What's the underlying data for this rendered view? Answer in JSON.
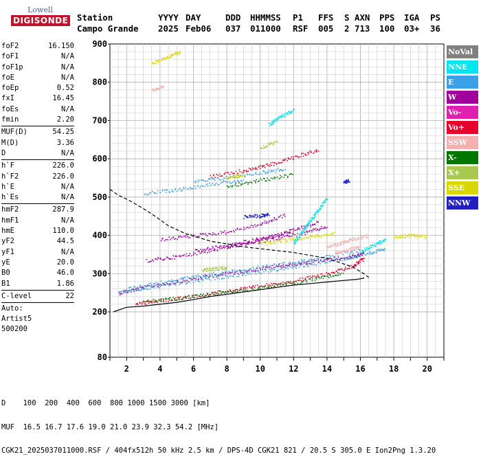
{
  "logo": {
    "line1": "Lowell",
    "line2": "DIGISONDE"
  },
  "header": {
    "row1": [
      "Station",
      "YYYY",
      "DAY",
      "DDD",
      "HHMMSS",
      "P1",
      "FFS",
      "S",
      "AXN",
      "PPS",
      "IGA",
      "PS"
    ],
    "row2": [
      "Campo Grande",
      "2025",
      "Feb06",
      "037",
      "011000",
      "RSF",
      "005",
      "2",
      "713",
      "100",
      "03+",
      "36"
    ]
  },
  "params": {
    "group1": [
      {
        "label": "foF2",
        "value": "16.150"
      },
      {
        "label": "foF1",
        "value": "N/A"
      },
      {
        "label": "foF1p",
        "value": "N/A"
      },
      {
        "label": "foE",
        "value": "N/A"
      },
      {
        "label": "foEp",
        "value": "0.52"
      },
      {
        "label": "fxI",
        "value": "16.45"
      },
      {
        "label": "foEs",
        "value": "N/A"
      },
      {
        "label": "fmin",
        "value": "2.20"
      }
    ],
    "group2": [
      {
        "label": "MUF(D)",
        "value": "54.25"
      },
      {
        "label": "M(D)",
        "value": "3.36"
      },
      {
        "label": "D",
        "value": "N/A"
      }
    ],
    "group3": [
      {
        "label": "h`F",
        "value": "226.0"
      },
      {
        "label": "h`F2",
        "value": "226.0"
      },
      {
        "label": "h`E",
        "value": "N/A"
      },
      {
        "label": "h`Es",
        "value": "N/A"
      }
    ],
    "group4": [
      {
        "label": "hmF2",
        "value": "287.9"
      },
      {
        "label": "hmF1",
        "value": "N/A"
      },
      {
        "label": "hmE",
        "value": "110.0"
      },
      {
        "label": "yF2",
        "value": "44.5"
      },
      {
        "label": "yF1",
        "value": "N/A"
      },
      {
        "label": "yE",
        "value": "20.0"
      },
      {
        "label": "B0",
        "value": "46.0"
      },
      {
        "label": "B1",
        "value": "1.86"
      }
    ],
    "group5": [
      {
        "label": "C-level",
        "value": "22"
      }
    ],
    "extra": [
      "Auto:",
      "Artist5",
      "500200"
    ]
  },
  "legend": [
    {
      "label": "NoVal",
      "bg": "#808080",
      "fg": "#ffffff"
    },
    {
      "label": "NNE",
      "bg": "#00e6f0",
      "fg": "#ffffff"
    },
    {
      "label": "E",
      "bg": "#3aa0e8",
      "fg": "#ffffff"
    },
    {
      "label": "W",
      "bg": "#a0009c",
      "fg": "#ffffff"
    },
    {
      "label": "Vo-",
      "bg": "#e020b0",
      "fg": "#ffffff"
    },
    {
      "label": "Vo+",
      "bg": "#e8002c",
      "fg": "#ffffff"
    },
    {
      "label": "SSW",
      "bg": "#f4b0b0",
      "fg": "#ffffff"
    },
    {
      "label": "X-",
      "bg": "#007800",
      "fg": "#ffffff"
    },
    {
      "label": "X+",
      "bg": "#a8c850",
      "fg": "#ffffff"
    },
    {
      "label": "SSE",
      "bg": "#d8d800",
      "fg": "#ffffff"
    },
    {
      "label": "NNW",
      "bg": "#2020c0",
      "fg": "#ffffff"
    }
  ],
  "footer": {
    "line1": "D    100  200  400  600  800 1000 1500 3000 [km]",
    "line2": "MUF  16.5 16.7 17.6 19.0 21.0 23.9 32.3 54.2 [MHz]",
    "line3": "CGK21_2025037011000.RSF / 404fx512h 50 kHz 2.5 km / DPS-4D CGK21 821 / 20.5 S 305.0 E Ion2Png 1.3.20"
  },
  "chart_data": {
    "type": "scatter",
    "xlim": [
      1,
      21
    ],
    "ylim": [
      80,
      900
    ],
    "xticks": [
      2,
      4,
      6,
      8,
      10,
      12,
      14,
      16,
      18,
      20
    ],
    "yticks": [
      80,
      200,
      300,
      400,
      500,
      600,
      700,
      800,
      900
    ],
    "grid": true,
    "yscale": "piecewise: 80-200 compressed, linear 200-900",
    "series": [
      {
        "name": "W",
        "color": "#a0009c",
        "traces": [
          {
            "x": [
              1.5,
              3,
              5,
              7,
              9,
              11,
              12.5,
              14,
              15.5,
              16.2
            ],
            "y": [
              250,
              265,
              280,
              295,
              308,
              320,
              328,
              337,
              345,
              352
            ]
          },
          {
            "x": [
              3.2,
              5,
              7,
              9,
              10.5,
              12,
              13.5
            ],
            "y": [
              335,
              345,
              362,
              378,
              395,
              415,
              435
            ]
          },
          {
            "x": [
              4,
              6,
              8,
              10,
              11.5
            ],
            "y": [
              390,
              400,
              410,
              430,
              455
            ]
          },
          {
            "x": [
              6,
              8,
              10,
              12
            ],
            "y": [
              360,
              375,
              392,
              410
            ]
          },
          {
            "x": [
              8,
              10,
              12.5,
              14
            ],
            "y": [
              370,
              385,
              405,
              425
            ]
          }
        ]
      },
      {
        "name": "E",
        "color": "#3aa0e8",
        "traces": [
          {
            "x": [
              1.5,
              3,
              5,
              7,
              9,
              11,
              13,
              15,
              16.5,
              17.5
            ],
            "y": [
              252,
              262,
              275,
              288,
              300,
              312,
              325,
              340,
              355,
              365
            ]
          },
          {
            "x": [
              2,
              4,
              6,
              8,
              10,
              12,
              14,
              16
            ],
            "y": [
              262,
              278,
              292,
              305,
              318,
              330,
              345,
              362
            ]
          },
          {
            "x": [
              3,
              5,
              7,
              9
            ],
            "y": [
              510,
              520,
              535,
              545
            ]
          },
          {
            "x": [
              6,
              8,
              10,
              11.5
            ],
            "y": [
              540,
              552,
              565,
              575
            ]
          }
        ]
      },
      {
        "name": "Vo+",
        "color": "#e8002c",
        "traces": [
          {
            "x": [
              2.5,
              4,
              6,
              8,
              10,
              12,
              14,
              15.5,
              16.2
            ],
            "y": [
              222,
              230,
              242,
              256,
              268,
              282,
              300,
              320,
              340
            ]
          },
          {
            "x": [
              7,
              9,
              10.5,
              12,
              13.5
            ],
            "y": [
              555,
              570,
              585,
              605,
              625
            ]
          }
        ]
      },
      {
        "name": "X-",
        "color": "#007800",
        "traces": [
          {
            "x": [
              3,
              5,
              7,
              9,
              11,
              13,
              15
            ],
            "y": [
              228,
              236,
              248,
              258,
              270,
              285,
              302
            ]
          },
          {
            "x": [
              8,
              10,
              12
            ],
            "y": [
              530,
              545,
              560
            ]
          }
        ]
      },
      {
        "name": "SSE",
        "color": "#d8d800",
        "traces": [
          {
            "x": [
              3.5,
              4.5,
              5.2
            ],
            "y": [
              850,
              868,
              880
            ]
          },
          {
            "x": [
              10,
              11.5,
              13,
              14.5
            ],
            "y": [
              380,
              388,
              398,
              405
            ]
          },
          {
            "x": [
              18,
              19,
              20
            ],
            "y": [
              398,
              400,
              398
            ]
          },
          {
            "x": [
              8,
              9
            ],
            "y": [
              550,
              560
            ]
          }
        ]
      },
      {
        "name": "SSW",
        "color": "#f4b0b0",
        "traces": [
          {
            "x": [
              14,
              14.8,
              15.5,
              16.5
            ],
            "y": [
              370,
              380,
              390,
              400
            ]
          },
          {
            "x": [
              14.5,
              15.2,
              16
            ],
            "y": [
              355,
              362,
              372
            ]
          },
          {
            "x": [
              3.5,
              4.2
            ],
            "y": [
              780,
              792
            ]
          }
        ]
      },
      {
        "name": "NNE",
        "color": "#00e6f0",
        "traces": [
          {
            "x": [
              12,
              12.5,
              13,
              13.5,
              14
            ],
            "y": [
              380,
              410,
              440,
              470,
              500
            ]
          },
          {
            "x": [
              10.5,
              11.2,
              12
            ],
            "y": [
              690,
              710,
              730
            ]
          },
          {
            "x": [
              16,
              16.8,
              17.5
            ],
            "y": [
              360,
              375,
              390
            ]
          }
        ]
      },
      {
        "name": "NNW",
        "color": "#2020c0",
        "traces": [
          {
            "x": [
              9,
              10,
              10.5
            ],
            "y": [
              450,
              452,
              455
            ]
          },
          {
            "x": [
              15,
              15.3
            ],
            "y": [
              540,
              545
            ]
          }
        ]
      },
      {
        "name": "X+",
        "color": "#a8c850",
        "traces": [
          {
            "x": [
              6.5,
              7.2,
              8
            ],
            "y": [
              310,
              313,
              316
            ]
          },
          {
            "x": [
              10,
              11
            ],
            "y": [
              630,
              645
            ]
          }
        ]
      }
    ],
    "lines": [
      {
        "style": "solid",
        "color": "#000000",
        "x": [
          1.2,
          2,
          3,
          4,
          5,
          6,
          7,
          8,
          9,
          10,
          11,
          12,
          13,
          14,
          15,
          15.8,
          16.2,
          16.2
        ],
        "y": [
          200,
          212,
          215,
          220,
          225,
          232,
          240,
          246,
          252,
          258,
          264,
          270,
          274,
          278,
          282,
          285,
          288,
          290
        ]
      },
      {
        "style": "dashed",
        "color": "#000000",
        "x": [
          1,
          1.5,
          2.2,
          3,
          3.7,
          4.5,
          5.5,
          7,
          9,
          12,
          14,
          15.5,
          16.2,
          16.5
        ],
        "y": [
          520,
          505,
          490,
          470,
          450,
          425,
          405,
          385,
          370,
          355,
          340,
          318,
          300,
          290
        ]
      }
    ]
  }
}
